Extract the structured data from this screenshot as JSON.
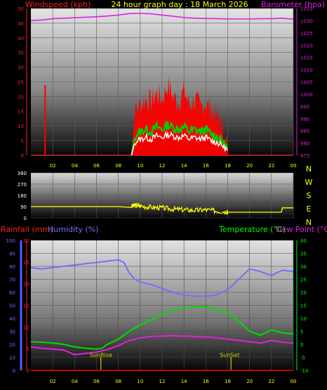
{
  "header": {
    "title": "24 hour graph day : 18 March 2026",
    "left_label": "Windspeed (kph)",
    "right_label": "Barometer (hpa)"
  },
  "colors": {
    "wind": "#ff0000",
    "gust_band": "#00cc00",
    "direction": "#ffff00",
    "baro": "#e020e0",
    "rain": "#ff0000",
    "humidity": "#7070ff",
    "temperature": "#00dd00",
    "dewpoint": "#e020e0",
    "title": "#ffff00",
    "temp_axis": "#00ff00",
    "sun_markers": "#cccc00"
  },
  "chart_data": [
    {
      "type": "line",
      "title": "24 hour graph day : 18 March 2026",
      "x_ticks": [
        "02",
        "04",
        "06",
        "08",
        "10",
        "12",
        "14",
        "16",
        "18",
        "20",
        "22",
        "00"
      ],
      "x_range_hours": [
        0,
        24
      ],
      "y_left": {
        "label": "Windspeed (kph)",
        "ticks": [
          "0",
          "5",
          "10",
          "15",
          "20",
          "25",
          "30",
          "35",
          "40",
          "45",
          "50"
        ],
        "range": [
          0,
          50
        ]
      },
      "y_right": {
        "label": "Barometer (hpa)",
        "ticks": [
          "975",
          "980",
          "985",
          "990",
          "995",
          "1000",
          "1005",
          "1010",
          "1015",
          "1020",
          "1025",
          "1030",
          "1035"
        ],
        "range": [
          975,
          1035
        ]
      },
      "series": [
        {
          "name": "Barometer",
          "axis": "right",
          "hours": [
            0,
            1,
            2,
            3,
            4,
            5,
            6,
            7,
            8,
            9,
            10,
            11,
            12,
            13,
            14,
            15,
            16,
            17,
            18,
            19,
            20,
            21,
            22,
            23,
            24
          ],
          "values": [
            1030.0,
            1030.3,
            1030.8,
            1031.0,
            1031.2,
            1031.4,
            1031.6,
            1031.9,
            1032.3,
            1032.9,
            1033.0,
            1032.8,
            1032.3,
            1031.8,
            1031.3,
            1031.0,
            1030.9,
            1030.8,
            1030.7,
            1030.7,
            1030.7,
            1030.8,
            1030.8,
            1031.0,
            1030.6
          ]
        },
        {
          "name": "Windspeed",
          "axis": "left",
          "hours": [
            9.2,
            9.5,
            10,
            10.5,
            11,
            11.5,
            12,
            12.5,
            13,
            13.5,
            14,
            14.5,
            15,
            15.5,
            16,
            16.5,
            17,
            17.5,
            18
          ],
          "values": [
            0,
            8,
            10,
            11,
            10,
            12,
            11,
            13,
            12,
            11,
            12,
            10,
            11,
            10,
            11,
            9,
            8,
            6,
            3
          ]
        },
        {
          "name": "Gust",
          "axis": "left",
          "hours": [
            9.2,
            9.5,
            10,
            10.5,
            11,
            11.5,
            12,
            12.5,
            13,
            13.5,
            14,
            14.5,
            15,
            15.5,
            16,
            16.5,
            17,
            17.5,
            18
          ],
          "values": [
            0,
            15,
            17,
            19,
            18,
            21,
            19,
            24,
            20,
            18,
            22,
            17,
            19,
            16,
            18,
            15,
            13,
            9,
            3
          ]
        },
        {
          "name": "Gust spike",
          "axis": "left",
          "hours": [
            1.3,
            1.3
          ],
          "values": [
            0,
            24
          ]
        }
      ]
    },
    {
      "type": "line",
      "y_left": {
        "ticks": [
          "0",
          "90",
          "180",
          "270",
          "360"
        ],
        "range": [
          0,
          360
        ]
      },
      "y_right": {
        "ticks": [
          "N",
          "W",
          "S",
          "E",
          "N"
        ]
      },
      "series": [
        {
          "name": "Wind direction",
          "hours": [
            0,
            8,
            9.2,
            9.5,
            10,
            11,
            12,
            13,
            14,
            15,
            16,
            17,
            17.9,
            18,
            19,
            20,
            21,
            22,
            22.9,
            23,
            24
          ],
          "values": [
            90,
            90,
            90,
            100,
            95,
            85,
            80,
            70,
            65,
            60,
            65,
            55,
            50,
            45,
            45,
            45,
            45,
            45,
            45,
            80,
            80
          ]
        }
      ]
    },
    {
      "type": "line",
      "labels": {
        "rainfall": "Rainfall (mm)",
        "humidity": "Humidity (%)",
        "temperature": "Temperature (°C)",
        "dewpoint": "Dew Point (°C)"
      },
      "y_humidity": {
        "ticks": [
          "0",
          "10",
          "20",
          "30",
          "40",
          "50",
          "60",
          "70",
          "80",
          "90",
          "100"
        ],
        "range": [
          0,
          100
        ]
      },
      "y_rain": {
        "ticks": [
          "0",
          "5",
          "10",
          "15",
          "20",
          "25",
          "30"
        ],
        "range": [
          0,
          30
        ]
      },
      "y_temp": {
        "ticks": [
          "-10",
          "-5",
          "0",
          "5",
          "10",
          "15",
          "20",
          "25",
          "30",
          "35",
          "40"
        ],
        "range": [
          -10,
          40
        ]
      },
      "annotations": [
        {
          "label": "SunRise",
          "hour": 6.4
        },
        {
          "label": "SunSet",
          "hour": 18.3
        }
      ],
      "series": [
        {
          "name": "Humidity",
          "axis": "humidity",
          "hours": [
            0,
            1,
            2,
            3,
            4,
            5,
            6,
            7,
            8,
            8.5,
            9,
            9.5,
            10,
            11,
            12,
            13,
            14,
            15,
            16,
            17,
            18,
            19,
            20,
            21,
            22,
            23,
            24
          ],
          "values": [
            79,
            78,
            79,
            80,
            81,
            82,
            83,
            84,
            85,
            83,
            75,
            70,
            68,
            66,
            63,
            60,
            58,
            57,
            57,
            58,
            62,
            70,
            78,
            76,
            73,
            77,
            76
          ]
        },
        {
          "name": "Temperature",
          "axis": "temp",
          "hours": [
            0,
            1,
            2,
            3,
            4,
            5,
            6,
            6.5,
            7,
            8,
            9,
            10,
            11,
            12,
            13,
            14,
            15,
            16,
            17,
            18,
            19,
            20,
            21,
            22,
            23,
            24
          ],
          "values": [
            1.0,
            0.8,
            0.5,
            0.0,
            -1.0,
            -1.5,
            -1.8,
            -1.5,
            0.0,
            2.0,
            5.0,
            7.5,
            9.5,
            11.5,
            13.0,
            14.0,
            14.3,
            14.3,
            13.5,
            12.0,
            9.0,
            5.0,
            3.5,
            5.5,
            4.5,
            4.0
          ]
        },
        {
          "name": "Dew Point",
          "axis": "temp",
          "hours": [
            0,
            1,
            2,
            3,
            4,
            5,
            6,
            7,
            8,
            9,
            10,
            11,
            12,
            13,
            14,
            15,
            16,
            17,
            18,
            19,
            20,
            21,
            22,
            23,
            24
          ],
          "values": [
            -1.0,
            -1.5,
            -1.8,
            -2.2,
            -4.0,
            -3.5,
            -3.0,
            -2.0,
            -0.5,
            1.5,
            2.5,
            3.0,
            3.2,
            3.3,
            3.2,
            3.0,
            2.8,
            2.5,
            2.0,
            1.5,
            1.0,
            0.5,
            1.5,
            0.8,
            0.5
          ]
        },
        {
          "name": "Rainfall",
          "axis": "rain",
          "hours": [
            0,
            24
          ],
          "values": [
            0,
            0
          ]
        }
      ]
    }
  ]
}
